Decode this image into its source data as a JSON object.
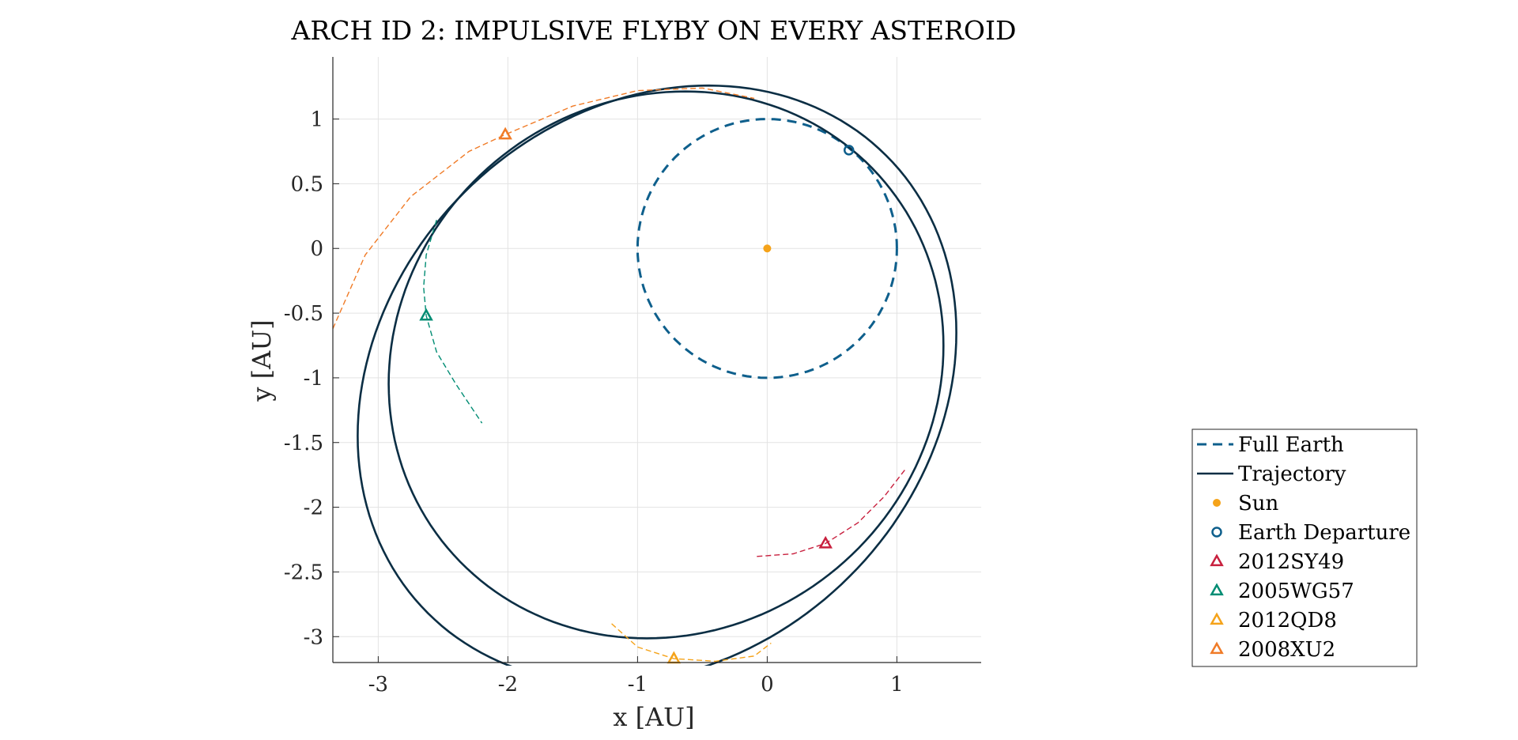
{
  "chart_data": {
    "type": "line",
    "title": "ARCH ID 2: IMPULSIVE FLYBY ON EVERY ASTEROID",
    "xlabel": "x [AU]",
    "ylabel": "y [AU]",
    "xlim": [
      -3.35,
      1.65
    ],
    "ylim": [
      -3.2,
      1.48
    ],
    "xticks": [
      "-3",
      "-2",
      "-1",
      "0",
      "1"
    ],
    "yticks": [
      "1",
      "0.5",
      "0",
      "-0.5",
      "-1",
      "-1.5",
      "-2",
      "-2.5",
      "-3"
    ],
    "grid": true,
    "legend_position": "outside-right",
    "colors": {
      "earth": "#0e5f8c",
      "trajectory": "#0b2e44",
      "sun": "#f5a31a",
      "sy49": "#c8203e",
      "wg57": "#008c73",
      "qd8": "#f5a31a",
      "xu2": "#f07b27"
    },
    "sun": {
      "x": 0,
      "y": 0
    },
    "earth_departure": {
      "x": 0.63,
      "y": 0.76
    },
    "earth_orbit": {
      "cx": 0,
      "cy": 0,
      "r": 1.0
    },
    "trajectory_loops": [
      {
        "cx": -0.78,
        "cy": -0.9,
        "rx": 2.2,
        "ry": 2.05,
        "tilt_deg": 40
      },
      {
        "cx": -0.85,
        "cy": -1.05,
        "rx": 2.5,
        "ry": 2.1,
        "tilt_deg": 45
      }
    ],
    "asteroids": [
      {
        "name": "2012SY49",
        "x": 0.45,
        "y": -2.28,
        "arc": [
          [
            -0.08,
            -2.38
          ],
          [
            0.2,
            -2.36
          ],
          [
            0.45,
            -2.28
          ],
          [
            0.7,
            -2.12
          ],
          [
            0.9,
            -1.92
          ],
          [
            1.07,
            -1.7
          ]
        ]
      },
      {
        "name": "2005WG57",
        "x": -2.63,
        "y": -0.52,
        "arc": [
          [
            -2.55,
            0.22
          ],
          [
            -2.63,
            -0.05
          ],
          [
            -2.65,
            -0.3
          ],
          [
            -2.63,
            -0.52
          ],
          [
            -2.55,
            -0.8
          ],
          [
            -2.4,
            -1.05
          ],
          [
            -2.2,
            -1.35
          ]
        ]
      },
      {
        "name": "2012QD8",
        "x": -0.72,
        "y": -3.17,
        "arc": [
          [
            -1.2,
            -2.9
          ],
          [
            -1.0,
            -3.08
          ],
          [
            -0.72,
            -3.17
          ],
          [
            -0.4,
            -3.19
          ],
          [
            -0.1,
            -3.15
          ],
          [
            0.03,
            -3.05
          ]
        ]
      },
      {
        "name": "2008XU2",
        "x": -2.02,
        "y": 0.88,
        "arc": [
          [
            -3.35,
            -0.62
          ],
          [
            -3.1,
            -0.05
          ],
          [
            -2.75,
            0.4
          ],
          [
            -2.3,
            0.75
          ],
          [
            -2.02,
            0.88
          ],
          [
            -1.5,
            1.1
          ],
          [
            -1.0,
            1.22
          ],
          [
            -0.5,
            1.24
          ],
          [
            -0.1,
            1.16
          ]
        ]
      }
    ],
    "legend": [
      "Full Earth",
      "Trajectory",
      "Sun",
      "Earth Departure",
      "2012SY49",
      "2005WG57",
      "2012QD8",
      "2008XU2"
    ]
  }
}
